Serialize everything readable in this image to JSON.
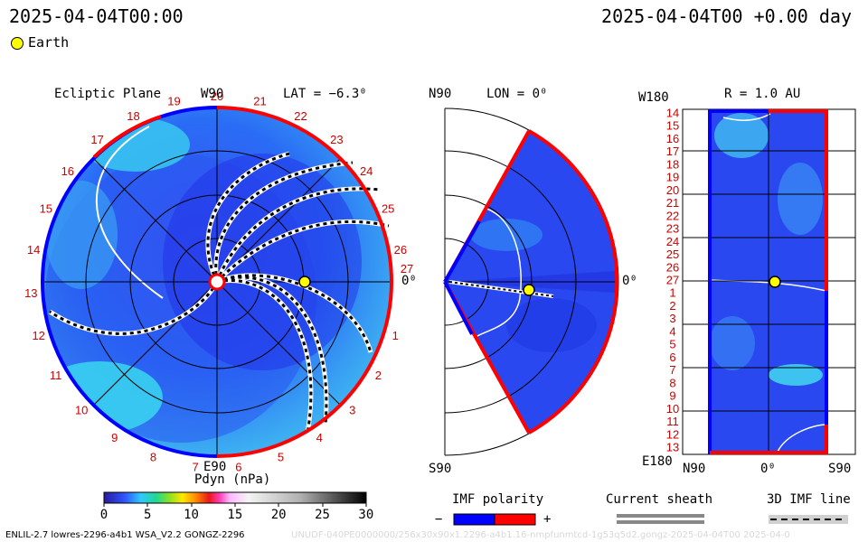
{
  "header": {
    "left_time": "2025-04-04T00:00",
    "right_time": "2025-04-04T00 +0.00 day"
  },
  "legend": {
    "earth_label": "Earth",
    "earth_color": "#ffff00"
  },
  "ecliptic": {
    "title": "Ecliptic Plane",
    "lat_label": "LAT = −6.3⁰",
    "top_label": "W90",
    "bottom_label": "E90",
    "right_label": "0⁰",
    "rotation_numbers": [
      "20",
      "21",
      "22",
      "23",
      "24",
      "25",
      "26",
      "27",
      "1",
      "2",
      "3",
      "4",
      "5",
      "6",
      "7",
      "8",
      "9",
      "10",
      "11",
      "12",
      "13",
      "14",
      "15",
      "16",
      "17",
      "18",
      "19"
    ]
  },
  "meridional": {
    "title": "LON = 0⁰",
    "top_label": "N90",
    "bottom_label": "S90",
    "right_label": "0⁰"
  },
  "mercator": {
    "title": "R = 1.0 AU",
    "top_left_label": "W180",
    "bottom_left_label": "E180",
    "x_labels": [
      "N90",
      "0⁰",
      "S90"
    ],
    "rows": [
      "14",
      "15",
      "16",
      "17",
      "18",
      "19",
      "20",
      "21",
      "22",
      "23",
      "24",
      "25",
      "26",
      "27",
      "1",
      "2",
      "3",
      "4",
      "5",
      "6",
      "7",
      "8",
      "9",
      "10",
      "11",
      "12",
      "13"
    ]
  },
  "colorbar": {
    "title": "Pdyn (nPa)",
    "ticks": [
      "0",
      "5",
      "10",
      "15",
      "20",
      "25",
      "30"
    ]
  },
  "imf": {
    "title": "IMF polarity",
    "minus": "−",
    "plus": "+",
    "neg_color": "#0000ff",
    "pos_color": "#ff0000"
  },
  "sheath": {
    "title": "Current sheath"
  },
  "imf3d": {
    "title": "3D IMF line"
  },
  "footer": {
    "model_info": "ENLIL-2.7 lowres-2296-a4b1 WSA_V2.2 GONGZ-2296",
    "watermark": "UNUDF-040PE0000000/256x30x90x1.2296-a4b1.16-nmpfunmtcd-1g53q5d2.gongz-2025-04-04T00   2025-04-0"
  }
}
